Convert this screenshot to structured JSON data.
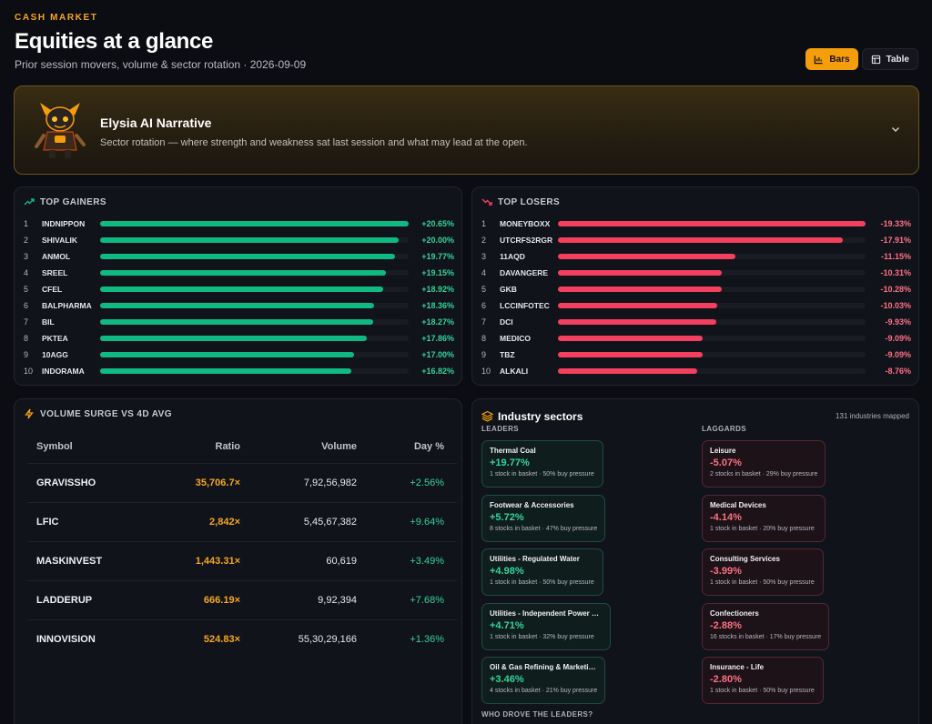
{
  "header": {
    "kicker": "CASH MARKET",
    "title": "Equities at a glance",
    "subtitle": "Prior session movers, volume & sector rotation · 2026-09-09",
    "view_toggle": {
      "bars_label": "Bars",
      "table_label": "Table",
      "selected": "Bars"
    }
  },
  "narrative": {
    "title": "Elysia AI Narrative",
    "text": "Sector rotation — where strength and weakness sat last session and what may lead at the open."
  },
  "gainers": {
    "title": "TOP GAINERS",
    "color": "#10b981",
    "rows": [
      {
        "rank": "1",
        "symbol": "INDNIPPON",
        "pct": "+20.65%",
        "value": 20.65
      },
      {
        "rank": "2",
        "symbol": "SHIVALIK",
        "pct": "+20.00%",
        "value": 20.0
      },
      {
        "rank": "3",
        "symbol": "ANMOL",
        "pct": "+19.77%",
        "value": 19.77
      },
      {
        "rank": "4",
        "symbol": "SREEL",
        "pct": "+19.15%",
        "value": 19.15
      },
      {
        "rank": "5",
        "symbol": "CFEL",
        "pct": "+18.92%",
        "value": 18.92
      },
      {
        "rank": "6",
        "symbol": "BALPHARMA",
        "pct": "+18.36%",
        "value": 18.36
      },
      {
        "rank": "7",
        "symbol": "BIL",
        "pct": "+18.27%",
        "value": 18.27
      },
      {
        "rank": "8",
        "symbol": "PKTEA",
        "pct": "+17.86%",
        "value": 17.86
      },
      {
        "rank": "9",
        "symbol": "10AGG",
        "pct": "+17.00%",
        "value": 17.0
      },
      {
        "rank": "10",
        "symbol": "INDORAMA",
        "pct": "+16.82%",
        "value": 16.82
      }
    ]
  },
  "losers": {
    "title": "TOP LOSERS",
    "color": "#f43f5e",
    "rows": [
      {
        "rank": "1",
        "symbol": "MONEYBOXX",
        "pct": "-19.33%",
        "value": 19.33
      },
      {
        "rank": "2",
        "symbol": "UTCRFS2RGR",
        "pct": "-17.91%",
        "value": 17.91
      },
      {
        "rank": "3",
        "symbol": "11AQD",
        "pct": "-11.15%",
        "value": 11.15
      },
      {
        "rank": "4",
        "symbol": "DAVANGERE",
        "pct": "-10.31%",
        "value": 10.31
      },
      {
        "rank": "5",
        "symbol": "GKB",
        "pct": "-10.28%",
        "value": 10.28
      },
      {
        "rank": "6",
        "symbol": "LCCINFOTEC",
        "pct": "-10.03%",
        "value": 10.03
      },
      {
        "rank": "7",
        "symbol": "DCI",
        "pct": "-9.93%",
        "value": 9.93
      },
      {
        "rank": "8",
        "symbol": "MEDICO",
        "pct": "-9.09%",
        "value": 9.09
      },
      {
        "rank": "9",
        "symbol": "TBZ",
        "pct": "-9.09%",
        "value": 9.09
      },
      {
        "rank": "10",
        "symbol": "ALKALI",
        "pct": "-8.76%",
        "value": 8.76
      }
    ]
  },
  "volume": {
    "title": "VOLUME SURGE VS 4D AVG",
    "columns": [
      "Symbol",
      "Ratio",
      "Volume",
      "Day %"
    ],
    "rows": [
      {
        "symbol": "GRAVISSHO",
        "ratio": "35,706.7×",
        "volume": "7,92,56,982",
        "day": "+2.56%"
      },
      {
        "symbol": "LFIC",
        "ratio": "2,842×",
        "volume": "5,45,67,382",
        "day": "+9.64%"
      },
      {
        "symbol": "MASKINVEST",
        "ratio": "1,443.31×",
        "volume": "60,619",
        "day": "+3.49%"
      },
      {
        "symbol": "LADDERUP",
        "ratio": "666.19×",
        "volume": "9,92,394",
        "day": "+7.68%"
      },
      {
        "symbol": "INNOVISION",
        "ratio": "524.83×",
        "volume": "55,30,29,166",
        "day": "+1.36%"
      }
    ]
  },
  "sectors": {
    "title": "Industry sectors",
    "count_label": "131 industries mapped",
    "leaders_label": "LEADERS",
    "laggards_label": "LAGGARDS",
    "footer_label": "WHO DROVE THE LEADERS?",
    "leaders": [
      {
        "name": "Thermal Coal",
        "pct": "+19.77%",
        "meta": "1 stock in basket · 50% buy pressure"
      },
      {
        "name": "Footwear & Accessories",
        "pct": "+5.72%",
        "meta": "8 stocks in basket · 47% buy pressure"
      },
      {
        "name": "Utilities - Regulated Water",
        "pct": "+4.98%",
        "meta": "1 stock in basket · 50% buy pressure"
      },
      {
        "name": "Utilities - Independent Power Pr...",
        "pct": "+4.71%",
        "meta": "1 stock in basket · 32% buy pressure"
      },
      {
        "name": "Oil & Gas Refining & Marketing",
        "pct": "+3.46%",
        "meta": "4 stocks in basket · 21% buy pressure"
      }
    ],
    "laggards": [
      {
        "name": "Leisure",
        "pct": "-5.07%",
        "meta": "2 stocks in basket · 29% buy pressure"
      },
      {
        "name": "Medical Devices",
        "pct": "-4.14%",
        "meta": "1 stock in basket · 20% buy pressure"
      },
      {
        "name": "Consulting Services",
        "pct": "-3.99%",
        "meta": "1 stock in basket · 50% buy pressure"
      },
      {
        "name": "Confectioners",
        "pct": "-2.88%",
        "meta": "16 stocks in basket · 17% buy pressure"
      },
      {
        "name": "Insurance - Life",
        "pct": "-2.80%",
        "meta": "1 stock in basket · 50% buy pressure"
      }
    ]
  }
}
